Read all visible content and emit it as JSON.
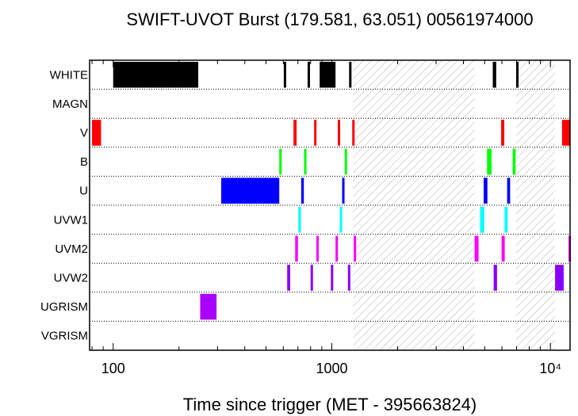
{
  "chart_data": {
    "type": "bar",
    "title": "SWIFT-UVOT Burst (179.581, 63.051) 00561974000",
    "xlabel": "Time since trigger (MET - 395663824)",
    "xscale": "log",
    "xlim": [
      78,
      12300
    ],
    "x_ticks": [
      {
        "value": 100,
        "label": "100"
      },
      {
        "value": 1000,
        "label": "1000"
      },
      {
        "value": 10000,
        "label": "10⁴"
      }
    ],
    "categories": [
      "WHITE",
      "MAGN",
      "V",
      "B",
      "U",
      "UVW1",
      "UVM2",
      "UVW2",
      "UGRISM",
      "VGRISM"
    ],
    "series": [
      {
        "filter": "WHITE",
        "color": "#000000",
        "intervals": [
          [
            100,
            245
          ],
          [
            603,
            618
          ],
          [
            775,
            790
          ],
          [
            880,
            1040
          ],
          [
            1200,
            1215
          ],
          [
            5450,
            5650
          ],
          [
            6970,
            7150
          ]
        ]
      },
      {
        "filter": "MAGN",
        "color": "#000000",
        "intervals": []
      },
      {
        "filter": "V",
        "color": "#ff0000",
        "intervals": [
          [
            80,
            88
          ],
          [
            668,
            690
          ],
          [
            830,
            850
          ],
          [
            1065,
            1085
          ],
          [
            1240,
            1260
          ],
          [
            5950,
            6150
          ],
          [
            11300,
            12300
          ]
        ]
      },
      {
        "filter": "B",
        "color": "#00ff00",
        "intervals": [
          [
            575,
            590
          ],
          [
            747,
            765
          ],
          [
            1145,
            1165
          ],
          [
            5130,
            5380
          ],
          [
            6720,
            6930
          ]
        ]
      },
      {
        "filter": "U",
        "color": "#0000ff",
        "intervals": [
          [
            312,
            575
          ],
          [
            725,
            745
          ],
          [
            1115,
            1135
          ],
          [
            4950,
            5150
          ],
          [
            6340,
            6540
          ]
        ]
      },
      {
        "filter": "UVW1",
        "color": "#00ffff",
        "intervals": [
          [
            703,
            722
          ],
          [
            1088,
            1110
          ],
          [
            4770,
            4980
          ],
          [
            6170,
            6370
          ]
        ]
      },
      {
        "filter": "UVM2",
        "color": "#ff00ff",
        "intervals": [
          [
            680,
            700
          ],
          [
            850,
            870
          ],
          [
            1040,
            1060
          ],
          [
            1260,
            1280
          ],
          [
            4500,
            4690
          ],
          [
            5980,
            6180
          ],
          [
            12100,
            12300
          ]
        ]
      },
      {
        "filter": "UVW2",
        "color": "#8800ff",
        "intervals": [
          [
            625,
            645
          ],
          [
            800,
            820
          ],
          [
            990,
            1010
          ],
          [
            1185,
            1205
          ],
          [
            5500,
            5700
          ],
          [
            10500,
            11500
          ]
        ]
      },
      {
        "filter": "UGRISM",
        "color": "#aa00ff",
        "intervals": [
          [
            250,
            297
          ]
        ]
      },
      {
        "filter": "VGRISM",
        "color": "#000000",
        "intervals": []
      }
    ],
    "hatched_regions": [
      [
        1250,
        4500
      ],
      [
        6950,
        10500
      ]
    ],
    "grid": "dotted horizontal lines between filter rows"
  }
}
